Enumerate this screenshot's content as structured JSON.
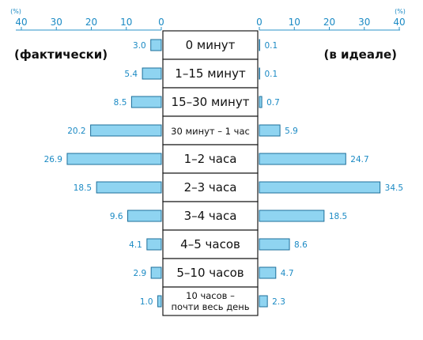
{
  "chart_data": {
    "type": "bar",
    "layout": "back-to-back horizontal",
    "unit": "(%)",
    "axis_ticks": [
      "40",
      "30",
      "20",
      "10",
      "0"
    ],
    "axis_ticks_right": [
      "0",
      "10",
      "20",
      "30",
      "40"
    ],
    "xlim": [
      0,
      40
    ],
    "series_labels": {
      "left": "(фактически)",
      "right": "(в идеале)"
    },
    "categories": [
      "0 минут",
      "1–15 минут",
      "15–30 минут",
      "30 минут – 1 час",
      "1–2 часа",
      "2–3 часа",
      "3–4 часа",
      "4–5 часов",
      "5–10 часов",
      "10 часов – почти весь день"
    ],
    "series": [
      {
        "name": "(фактически)",
        "side": "left",
        "values": [
          3.0,
          5.4,
          8.5,
          20.2,
          26.9,
          18.5,
          9.6,
          4.1,
          2.9,
          1.0
        ],
        "value_labels": [
          "3.0",
          "5.4",
          "8.5",
          "20.2",
          "26.9",
          "18.5",
          "9.6",
          "4.1",
          "2.9",
          "1.0"
        ]
      },
      {
        "name": "(в идеале)",
        "side": "right",
        "values": [
          0.1,
          0.1,
          0.7,
          5.9,
          24.7,
          34.5,
          18.5,
          8.6,
          4.7,
          2.3
        ],
        "value_labels": [
          "0.1",
          "0.1",
          "0.7",
          "5.9",
          "24.7",
          "34.5",
          "18.5",
          "8.6",
          "4.7",
          "2.3"
        ]
      }
    ],
    "colors": {
      "bar_fill": "#8fd4f1",
      "bar_stroke": "#1d6f9b",
      "accent": "#1b8ac4"
    }
  }
}
